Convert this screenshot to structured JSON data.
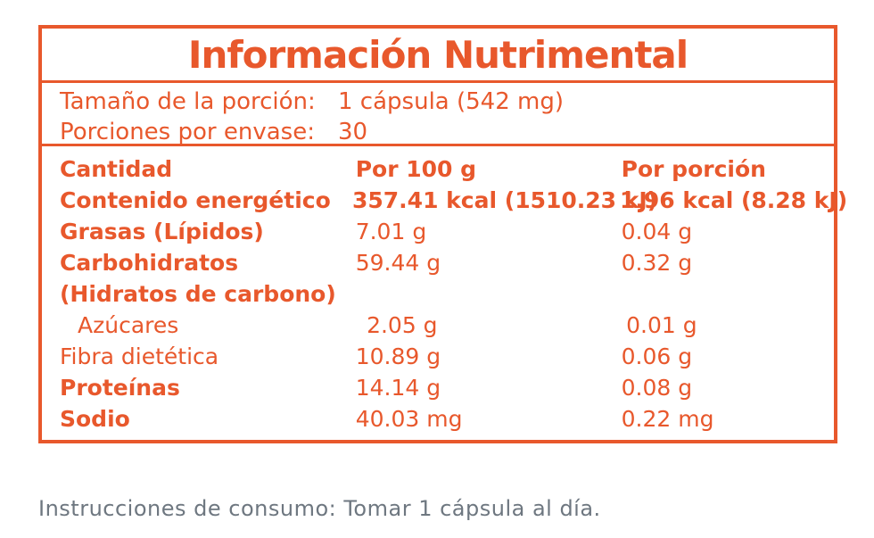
{
  "title": "Información Nutrimental",
  "serving": {
    "size_label": "Tamaño de la porción:",
    "size_value": "1 cápsula (542 mg)",
    "per_container_label": "Porciones por envase:",
    "per_container_value": "30"
  },
  "table": {
    "headers": [
      "Cantidad",
      "Por 100 g",
      "Por porción"
    ],
    "rows": [
      {
        "name": "Contenido energético",
        "per100": "357.41 kcal (1510.23 kJ)",
        "perServing": "1.96 kcal (8.28 kJ)"
      },
      {
        "name": "Grasas (Lípidos)",
        "per100": "7.01 g",
        "perServing": "0.04 g"
      },
      {
        "name": "Carbohidratos",
        "per100": "59.44 g",
        "perServing": "0.32 g"
      },
      {
        "name": "(Hidratos de carbono)",
        "per100": "",
        "perServing": ""
      },
      {
        "name": "Azúcares",
        "per100": "2.05 g",
        "perServing": "0.01 g"
      },
      {
        "name": "Fibra dietética",
        "per100": "10.89 g",
        "perServing": "0.06 g"
      },
      {
        "name": "Proteínas",
        "per100": "14.14 g",
        "perServing": "0.08 g"
      },
      {
        "name": "Sodio",
        "per100": "40.03 mg",
        "perServing": "0.22 mg"
      }
    ]
  },
  "instructions": "Instrucciones de consumo: Tomar 1 cápsula al día.",
  "colors": {
    "accent": "#e8582c",
    "instructions": "#6e7780"
  }
}
